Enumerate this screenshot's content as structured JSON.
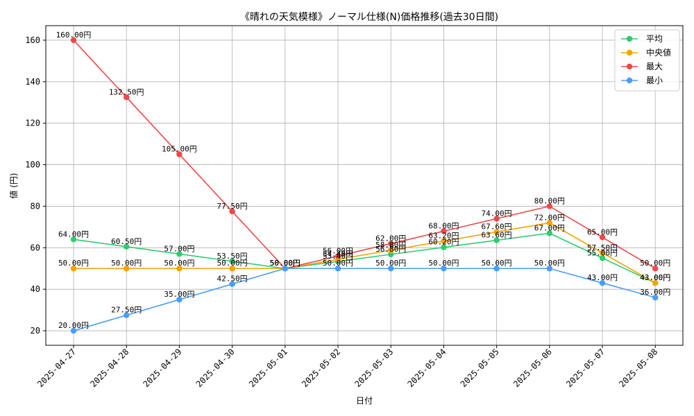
{
  "chart_data": {
    "type": "line",
    "title": "《晴れの天気模様》ノーマル仕様(N)価格推移(過去30日間)",
    "xlabel": "日付",
    "ylabel": "値 (円)",
    "label_suffix": "円",
    "categories": [
      "2025-04-27",
      "2025-04-28",
      "2025-04-29",
      "2025-04-30",
      "2025-05-01",
      "2025-05-02",
      "2025-05-03",
      "2025-05-04",
      "2025-05-05",
      "2025-05-06",
      "2025-05-07",
      "2025-05-08"
    ],
    "y_ticks": [
      20,
      40,
      60,
      80,
      100,
      120,
      140,
      160
    ],
    "ylim": [
      13,
      167
    ],
    "grid": true,
    "legend_position": "top-right",
    "series": [
      {
        "name": "平均",
        "color": "#2ecc71",
        "values": [
          64.0,
          60.5,
          57.0,
          53.5,
          50.0,
          53.4,
          56.8,
          60.2,
          63.6,
          67.0,
          55.0,
          43.0
        ]
      },
      {
        "name": "中央値",
        "color": "#f5a300",
        "values": [
          50.0,
          50.0,
          50.0,
          50.0,
          50.0,
          54.4,
          58.8,
          63.2,
          67.6,
          72.0,
          57.5,
          43.0
        ]
      },
      {
        "name": "最大",
        "color": "#f04848",
        "values": [
          160.0,
          132.5,
          105.0,
          77.5,
          50.0,
          56.0,
          62.0,
          68.0,
          74.0,
          80.0,
          65.0,
          50.0
        ]
      },
      {
        "name": "最小",
        "color": "#4a9df8",
        "values": [
          20.0,
          27.5,
          35.0,
          42.5,
          50.0,
          50.0,
          50.0,
          50.0,
          50.0,
          50.0,
          43.0,
          36.0
        ]
      }
    ]
  }
}
